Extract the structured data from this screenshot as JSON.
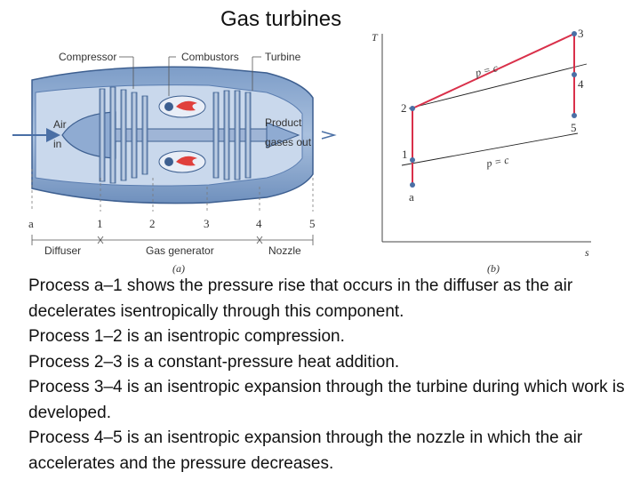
{
  "slide_title": "Gas turbines",
  "engine": {
    "components": [
      "Compressor",
      "Combustors",
      "Turbine"
    ],
    "air_in": [
      "Air",
      "in"
    ],
    "product_out": [
      "Product",
      "gases out"
    ],
    "stations": [
      "a",
      "1",
      "2",
      "3",
      "4",
      "5"
    ],
    "sections": [
      "Diffuser",
      "Gas generator",
      "Nozzle"
    ],
    "caption": "(a)"
  },
  "ts_diagram": {
    "y_axis": "T",
    "x_axis": "s",
    "states": [
      "1",
      "2",
      "3",
      "4",
      "5",
      "a"
    ],
    "isobar_label": "p = c",
    "caption": "(b)",
    "colors": {
      "cycle": "#d9304a",
      "isobar": "#222222",
      "state_point": "#4a6fa5"
    }
  },
  "paragraphs": [
    " Process a–1 shows the pressure rise that occurs in the diffuser as the air decelerates isentropically through this component.",
    "Process 1–2 is an isentropic compression.",
    "Process 2–3 is a constant-pressure heat addition.",
    "Process 3–4 is an isentropic expansion through the turbine during which work is developed.",
    "Process 4–5 is an isentropic expansion through the nozzle in which the air accelerates and the pressure decreases."
  ]
}
